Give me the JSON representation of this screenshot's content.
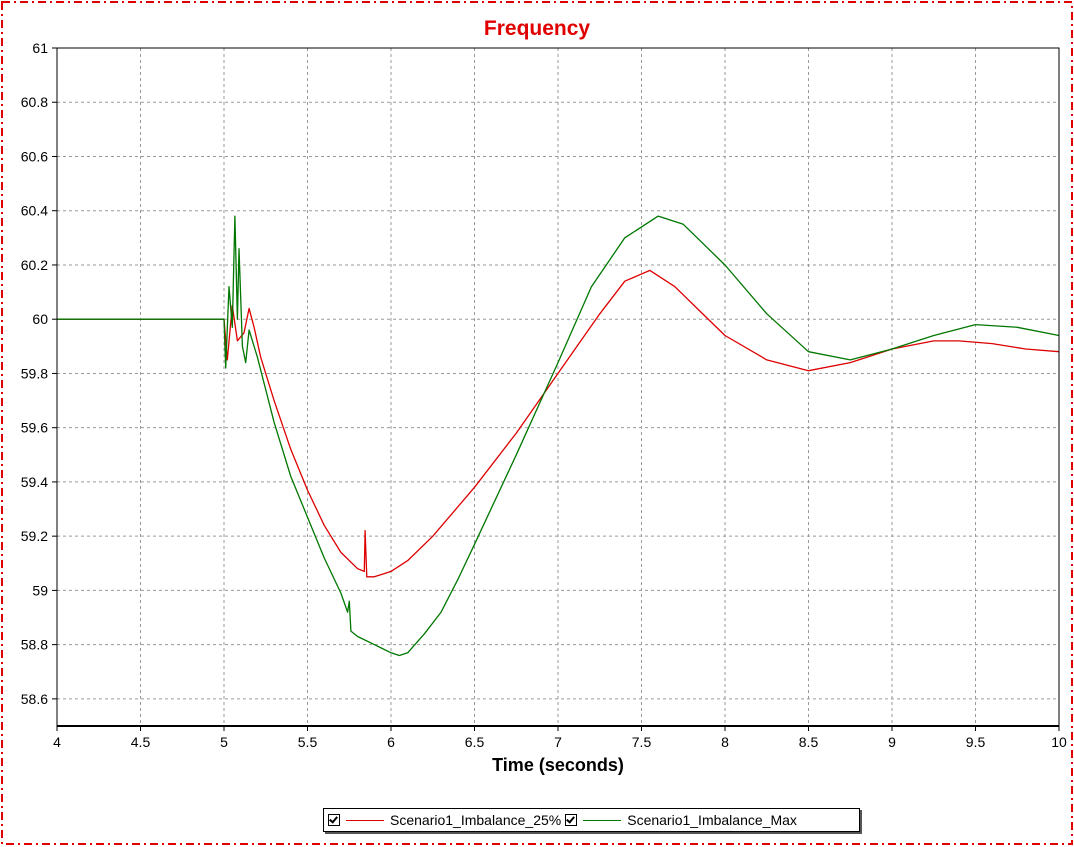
{
  "chart_data": {
    "type": "line",
    "title": "Frequency",
    "xlabel": "Time (seconds)",
    "ylabel": "",
    "xlim": [
      4,
      10
    ],
    "ylim": [
      58.5,
      61
    ],
    "xticks": [
      "4",
      "4.5",
      "5",
      "5.5",
      "6",
      "6.5",
      "7",
      "7.5",
      "8",
      "8.5",
      "9",
      "9.5",
      "10"
    ],
    "yticks": [
      "58.6",
      "58.8",
      "59",
      "59.2",
      "59.4",
      "59.6",
      "59.8",
      "60",
      "60.2",
      "60.4",
      "60.6",
      "60.8",
      "61"
    ],
    "grid": true,
    "legend_position": "bottom",
    "series": [
      {
        "name": "Scenario1_Imbalance_25%",
        "color": "#dd0000",
        "points": [
          [
            4,
            60
          ],
          [
            5,
            60
          ],
          [
            5.02,
            59.85
          ],
          [
            5.05,
            60.05
          ],
          [
            5.08,
            59.92
          ],
          [
            5.12,
            59.95
          ],
          [
            5.15,
            60.04
          ],
          [
            5.18,
            59.97
          ],
          [
            5.22,
            59.86
          ],
          [
            5.3,
            59.7
          ],
          [
            5.4,
            59.52
          ],
          [
            5.5,
            59.37
          ],
          [
            5.6,
            59.24
          ],
          [
            5.7,
            59.14
          ],
          [
            5.8,
            59.08
          ],
          [
            5.84,
            59.07
          ],
          [
            5.845,
            59.22
          ],
          [
            5.855,
            59.05
          ],
          [
            5.9,
            59.05
          ],
          [
            6,
            59.07
          ],
          [
            6.1,
            59.11
          ],
          [
            6.25,
            59.2
          ],
          [
            6.5,
            59.38
          ],
          [
            6.75,
            59.58
          ],
          [
            7,
            59.8
          ],
          [
            7.25,
            60.02
          ],
          [
            7.4,
            60.14
          ],
          [
            7.55,
            60.18
          ],
          [
            7.7,
            60.12
          ],
          [
            7.85,
            60.03
          ],
          [
            8,
            59.94
          ],
          [
            8.25,
            59.85
          ],
          [
            8.5,
            59.81
          ],
          [
            8.75,
            59.84
          ],
          [
            9,
            59.89
          ],
          [
            9.25,
            59.92
          ],
          [
            9.4,
            59.92
          ],
          [
            9.6,
            59.91
          ],
          [
            9.8,
            59.89
          ],
          [
            10,
            59.88
          ]
        ]
      },
      {
        "name": "Scenario1_Imbalance_Max",
        "color": "#007700",
        "points": [
          [
            4,
            60
          ],
          [
            5,
            60
          ],
          [
            5.01,
            59.82
          ],
          [
            5.03,
            60.12
          ],
          [
            5.05,
            59.97
          ],
          [
            5.065,
            60.38
          ],
          [
            5.08,
            60.0
          ],
          [
            5.09,
            60.26
          ],
          [
            5.11,
            59.9
          ],
          [
            5.13,
            59.84
          ],
          [
            5.15,
            59.96
          ],
          [
            5.2,
            59.86
          ],
          [
            5.3,
            59.62
          ],
          [
            5.4,
            59.42
          ],
          [
            5.5,
            59.27
          ],
          [
            5.6,
            59.12
          ],
          [
            5.7,
            58.99
          ],
          [
            5.74,
            58.92
          ],
          [
            5.75,
            58.96
          ],
          [
            5.76,
            58.85
          ],
          [
            5.8,
            58.83
          ],
          [
            5.9,
            58.8
          ],
          [
            6,
            58.77
          ],
          [
            6.05,
            58.76
          ],
          [
            6.1,
            58.77
          ],
          [
            6.2,
            58.84
          ],
          [
            6.3,
            58.92
          ],
          [
            6.4,
            59.04
          ],
          [
            6.5,
            59.17
          ],
          [
            6.75,
            59.5
          ],
          [
            7,
            59.84
          ],
          [
            7.2,
            60.12
          ],
          [
            7.4,
            60.3
          ],
          [
            7.6,
            60.38
          ],
          [
            7.75,
            60.35
          ],
          [
            8,
            60.2
          ],
          [
            8.25,
            60.02
          ],
          [
            8.5,
            59.88
          ],
          [
            8.75,
            59.85
          ],
          [
            9,
            59.89
          ],
          [
            9.25,
            59.94
          ],
          [
            9.5,
            59.98
          ],
          [
            9.75,
            59.97
          ],
          [
            10,
            59.94
          ]
        ]
      }
    ]
  }
}
